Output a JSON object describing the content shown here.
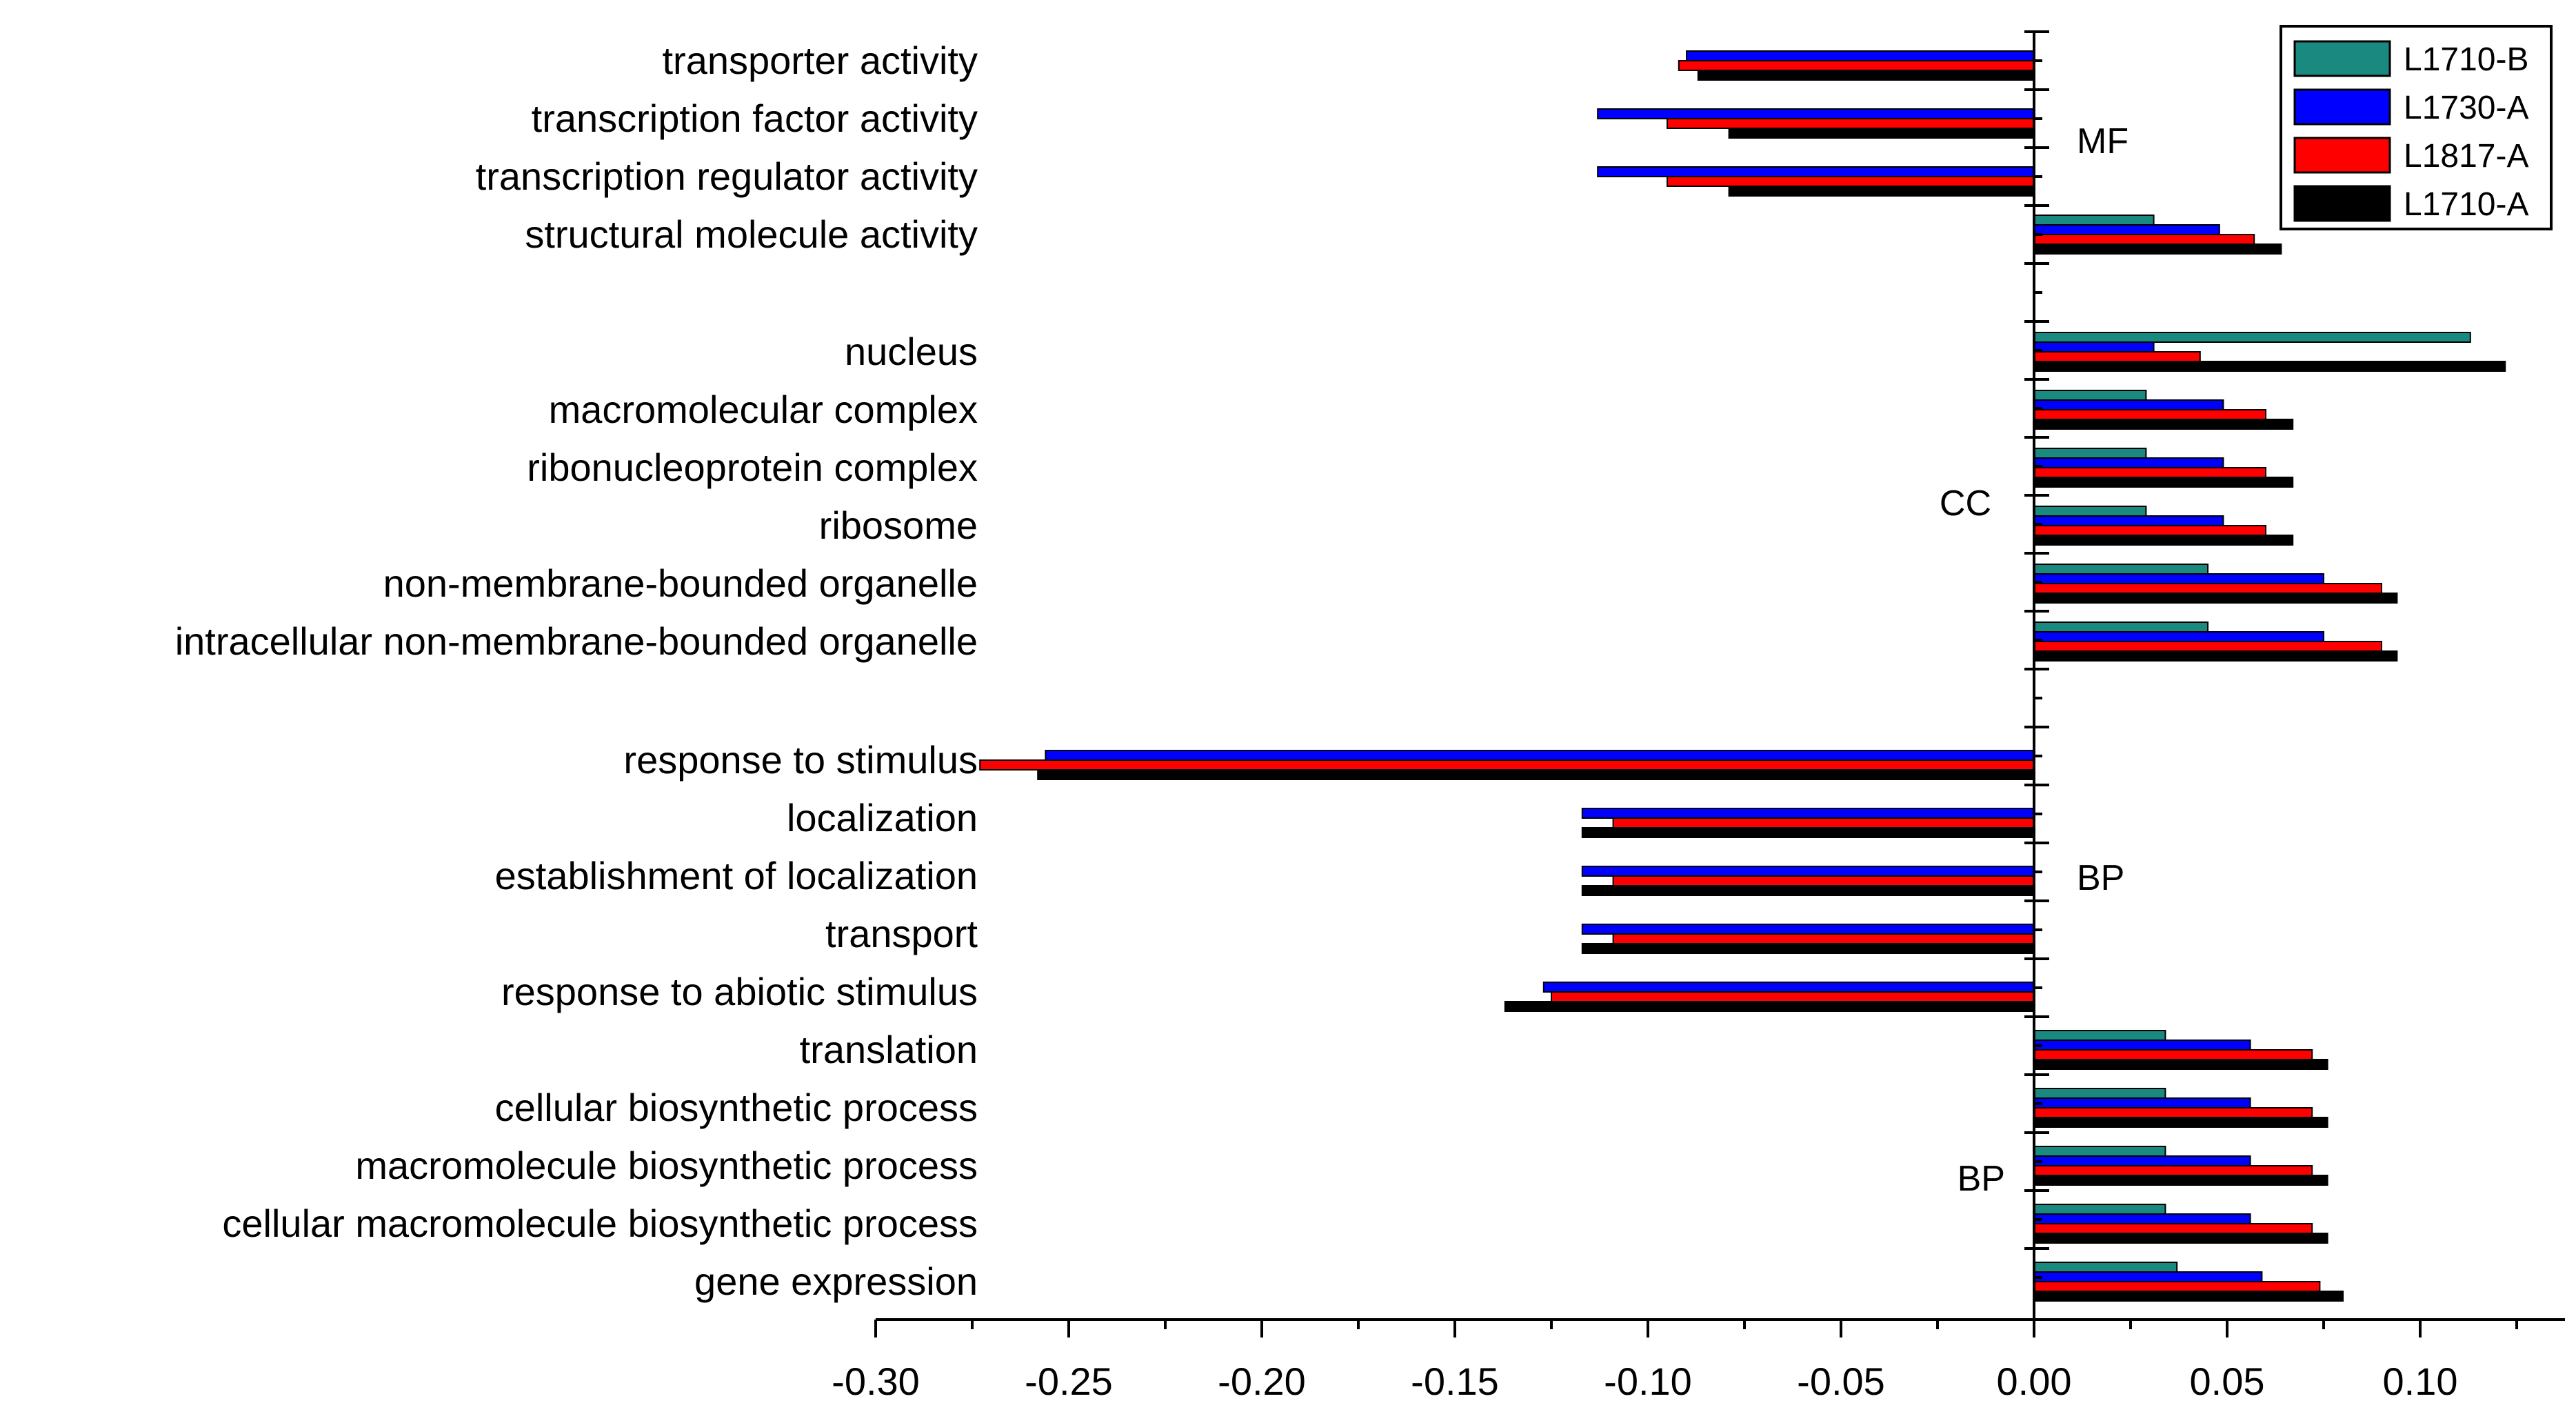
{
  "chart_data": {
    "type": "bar",
    "orientation": "horizontal",
    "title": "",
    "xlabel": "",
    "ylabel": "",
    "xlim": [
      -0.3,
      0.13
    ],
    "x_ticks": [
      -0.3,
      -0.25,
      -0.2,
      -0.15,
      -0.1,
      -0.05,
      0.0,
      0.05,
      0.1
    ],
    "x_tick_labels": [
      "-0.30",
      "-0.25",
      "-0.20",
      "-0.15",
      "-0.10",
      "-0.05",
      "0.00",
      "0.05",
      "0.10"
    ],
    "grid": false,
    "legend_position": "top-right",
    "groups": [
      {
        "label": "MF",
        "categories": [
          "transporter activity",
          "transcription factor activity",
          "transcription regulator activity",
          "structural molecule activity"
        ]
      },
      {
        "label": "CC",
        "categories": [
          "nucleus",
          "macromolecular complex",
          "ribonucleoprotein complex",
          "ribosome",
          "non-membrane-bounded organelle",
          "intracellular non-membrane-bounded organelle"
        ]
      },
      {
        "label": "BP",
        "categories": [
          "response to stimulus",
          "localization",
          "establishment of localization",
          "transport",
          "response to abiotic stimulus"
        ]
      },
      {
        "label": "BP",
        "categories": [
          "translation",
          "cellular biosynthetic process",
          "macromolecule biosynthetic process",
          "cellular macromolecule biosynthetic process",
          "gene expression"
        ]
      }
    ],
    "categories": [
      "transporter activity",
      "transcription factor activity",
      "transcription regulator activity",
      "structural molecule activity",
      "nucleus",
      "macromolecular complex",
      "ribonucleoprotein complex",
      "ribosome",
      "non-membrane-bounded organelle",
      "intracellular non-membrane-bounded organelle",
      "response to stimulus",
      "localization",
      "establishment of localization",
      "transport",
      "response to abiotic stimulus",
      "translation",
      "cellular biosynthetic process",
      "macromolecule biosynthetic process",
      "cellular macromolecule biosynthetic process",
      "gene expression"
    ],
    "series": [
      {
        "name": "L1710-B",
        "color": "#1a8a80",
        "values": [
          0,
          0,
          0,
          0.031,
          0.113,
          0.029,
          0.029,
          0.029,
          0.045,
          0.045,
          0,
          0,
          0,
          0,
          0,
          0.034,
          0.034,
          0.034,
          0.034,
          0.037
        ]
      },
      {
        "name": "L1730-A",
        "color": "#0000ff",
        "values": [
          -0.09,
          -0.113,
          -0.113,
          0.048,
          0.031,
          0.049,
          0.049,
          0.049,
          0.075,
          0.075,
          -0.256,
          -0.117,
          -0.117,
          -0.117,
          -0.127,
          0.056,
          0.056,
          0.056,
          0.056,
          0.059
        ]
      },
      {
        "name": "L1817-A",
        "color": "#ff0000",
        "values": [
          -0.092,
          -0.095,
          -0.095,
          0.057,
          0.043,
          0.06,
          0.06,
          0.06,
          0.09,
          0.09,
          -0.273,
          -0.109,
          -0.109,
          -0.109,
          -0.125,
          0.072,
          0.072,
          0.072,
          0.072,
          0.074
        ]
      },
      {
        "name": "L1710-A",
        "color": "#000000",
        "values": [
          -0.087,
          -0.079,
          -0.079,
          0.064,
          0.122,
          0.067,
          0.067,
          0.067,
          0.094,
          0.094,
          -0.258,
          -0.117,
          -0.117,
          -0.117,
          -0.137,
          0.076,
          0.076,
          0.076,
          0.076,
          0.08
        ]
      }
    ],
    "legend_order": [
      "L1710-B",
      "L1730-A",
      "L1817-A",
      "L1710-A"
    ]
  }
}
